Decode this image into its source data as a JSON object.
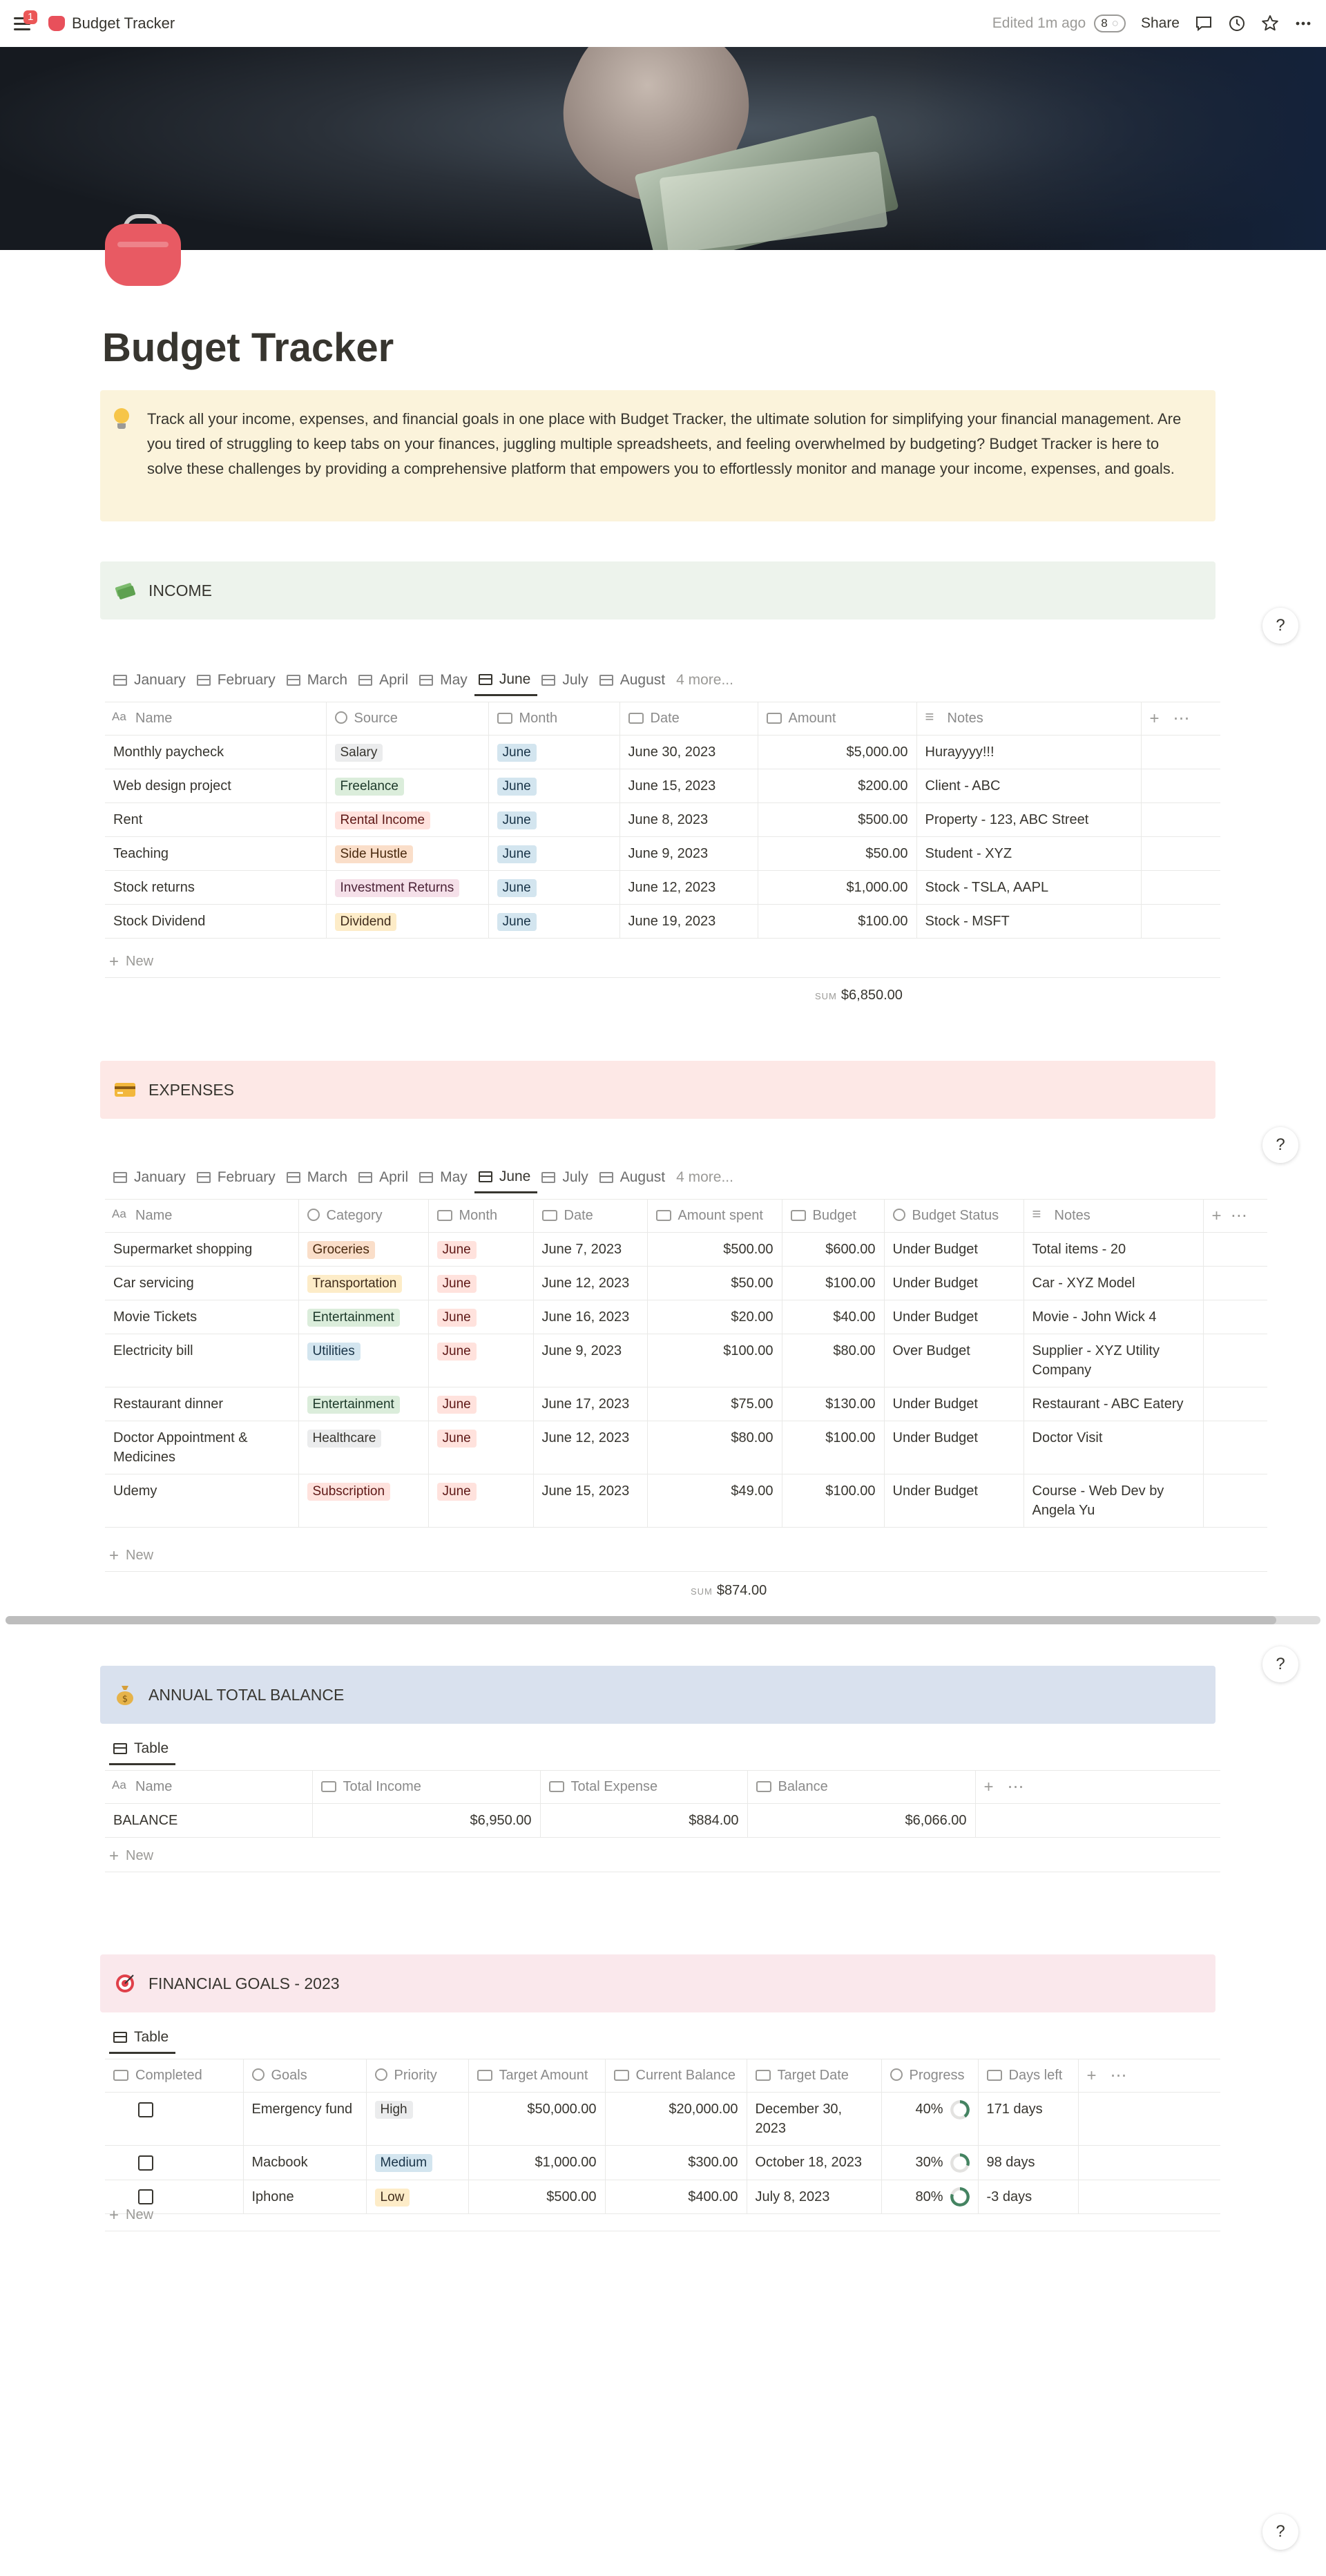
{
  "topbar": {
    "notification_count": "1",
    "breadcrumb": "Budget Tracker",
    "edited": "Edited 1m ago",
    "viewer_count": "8",
    "share": "Share",
    "icons": [
      "menu-icon",
      "comment-icon",
      "clock-icon",
      "star-icon",
      "more-icon"
    ]
  },
  "page": {
    "title": "Budget Tracker",
    "callout": "Track all your income, expenses, and financial goals in one place with Budget Tracker, the ultimate solution for simplifying your financial management. Are you tired of struggling to keep tabs on your finances, juggling multiple spreadsheets, and feeling overwhelmed by budgeting? Budget Tracker is here to solve these challenges by providing a comprehensive platform that empowers you to effortlessly monitor and manage your income, expenses, and goals.",
    "help": "?"
  },
  "income": {
    "heading": "INCOME",
    "colors": {
      "heading_bg": "#edf3ec"
    },
    "tabs": [
      "January",
      "February",
      "March",
      "April",
      "May",
      "June",
      "July",
      "August",
      "4 more..."
    ],
    "active_tab": "June",
    "columns": [
      "Name",
      "Source",
      "Month",
      "Date",
      "Amount",
      "Notes"
    ],
    "rows": [
      {
        "name": "Monthly paycheck",
        "source": "Salary",
        "month": "June",
        "date": "June 30, 2023",
        "amount": "$5,000.00",
        "notes": "Hurayyyy!!!"
      },
      {
        "name": "Web design project",
        "source": "Freelance",
        "month": "June",
        "date": "June 15, 2023",
        "amount": "$200.00",
        "notes": "Client - ABC"
      },
      {
        "name": "Rent",
        "source": "Rental Income",
        "month": "June",
        "date": "June 8, 2023",
        "amount": "$500.00",
        "notes": "Property - 123, ABC Street"
      },
      {
        "name": "Teaching",
        "source": "Side Hustle",
        "month": "June",
        "date": "June 9, 2023",
        "amount": "$50.00",
        "notes": "Student - XYZ"
      },
      {
        "name": "Stock returns",
        "source": "Investment Returns",
        "month": "June",
        "date": "June 12, 2023",
        "amount": "$1,000.00",
        "notes": "Stock - TSLA, AAPL"
      },
      {
        "name": "Stock Dividend",
        "source": "Dividend",
        "month": "June",
        "date": "June 19, 2023",
        "amount": "$100.00",
        "notes": "Stock - MSFT"
      }
    ],
    "new_label": "New",
    "sum_label": "SUM",
    "sum_value": "$6,850.00"
  },
  "expenses": {
    "heading": "EXPENSES",
    "colors": {
      "heading_bg": "#fde8e6"
    },
    "tabs": [
      "January",
      "February",
      "March",
      "April",
      "May",
      "June",
      "July",
      "August",
      "4 more..."
    ],
    "active_tab": "June",
    "columns": [
      "Name",
      "Category",
      "Month",
      "Date",
      "Amount spent",
      "Budget",
      "Budget Status",
      "Notes"
    ],
    "rows": [
      {
        "name": "Supermarket shopping",
        "category": "Groceries",
        "month": "June",
        "date": "June 7, 2023",
        "spent": "$500.00",
        "budget": "$600.00",
        "status": "Under Budget",
        "notes": "Total items - 20"
      },
      {
        "name": "Car servicing",
        "category": "Transportation",
        "month": "June",
        "date": "June 12, 2023",
        "spent": "$50.00",
        "budget": "$100.00",
        "status": "Under Budget",
        "notes": "Car - XYZ Model"
      },
      {
        "name": "Movie Tickets",
        "category": "Entertainment",
        "month": "June",
        "date": "June 16, 2023",
        "spent": "$20.00",
        "budget": "$40.00",
        "status": "Under Budget",
        "notes": "Movie - John Wick 4"
      },
      {
        "name": "Electricity bill",
        "category": "Utilities",
        "month": "June",
        "date": "June 9, 2023",
        "spent": "$100.00",
        "budget": "$80.00",
        "status": "Over Budget",
        "notes": "Supplier - XYZ Utility Company"
      },
      {
        "name": "Restaurant dinner",
        "category": "Entertainment",
        "month": "June",
        "date": "June 17, 2023",
        "spent": "$75.00",
        "budget": "$130.00",
        "status": "Under Budget",
        "notes": "Restaurant - ABC Eatery"
      },
      {
        "name": "Doctor Appointment & Medicines",
        "category": "Healthcare",
        "month": "June",
        "date": "June 12, 2023",
        "spent": "$80.00",
        "budget": "$100.00",
        "status": "Under Budget",
        "notes": "Doctor Visit"
      },
      {
        "name": "Udemy",
        "category": "Subscription",
        "month": "June",
        "date": "June 15, 2023",
        "spent": "$49.00",
        "budget": "$100.00",
        "status": "Under Budget",
        "notes": "Course - Web Dev by Angela Yu"
      }
    ],
    "new_label": "New",
    "sum_label": "SUM",
    "sum_value": "$874.00"
  },
  "balance": {
    "heading": "ANNUAL TOTAL BALANCE",
    "colors": {
      "heading_bg": "#d9e1ee"
    },
    "tab": "Table",
    "columns": [
      "Name",
      "Total Income",
      "Total Expense",
      "Balance"
    ],
    "rows": [
      {
        "name": "BALANCE",
        "income": "$6,950.00",
        "expense": "$884.00",
        "balance": "$6,066.00"
      }
    ],
    "new_label": "New"
  },
  "goals": {
    "heading": "FINANCIAL GOALS - 2023",
    "colors": {
      "heading_bg": "#fae8ec"
    },
    "tab": "Table",
    "columns": [
      "Completed",
      "Goals",
      "Priority",
      "Target Amount",
      "Current Balance",
      "Target Date",
      "Progress",
      "Days left"
    ],
    "rows": [
      {
        "goal": "Emergency fund",
        "priority": "High",
        "target": "$50,000.00",
        "current": "$20,000.00",
        "date": "December 30, 2023",
        "progress": "40%",
        "progress_value": 0.4,
        "days": "171 days"
      },
      {
        "goal": "Macbook",
        "priority": "Medium",
        "target": "$1,000.00",
        "current": "$300.00",
        "date": "October 18, 2023",
        "progress": "30%",
        "progress_value": 0.3,
        "days": "98 days"
      },
      {
        "goal": "Iphone",
        "priority": "Low",
        "target": "$500.00",
        "current": "$400.00",
        "date": "July 8, 2023",
        "progress": "80%",
        "progress_value": 0.8,
        "days": "-3 days"
      }
    ],
    "new_label": "New"
  }
}
